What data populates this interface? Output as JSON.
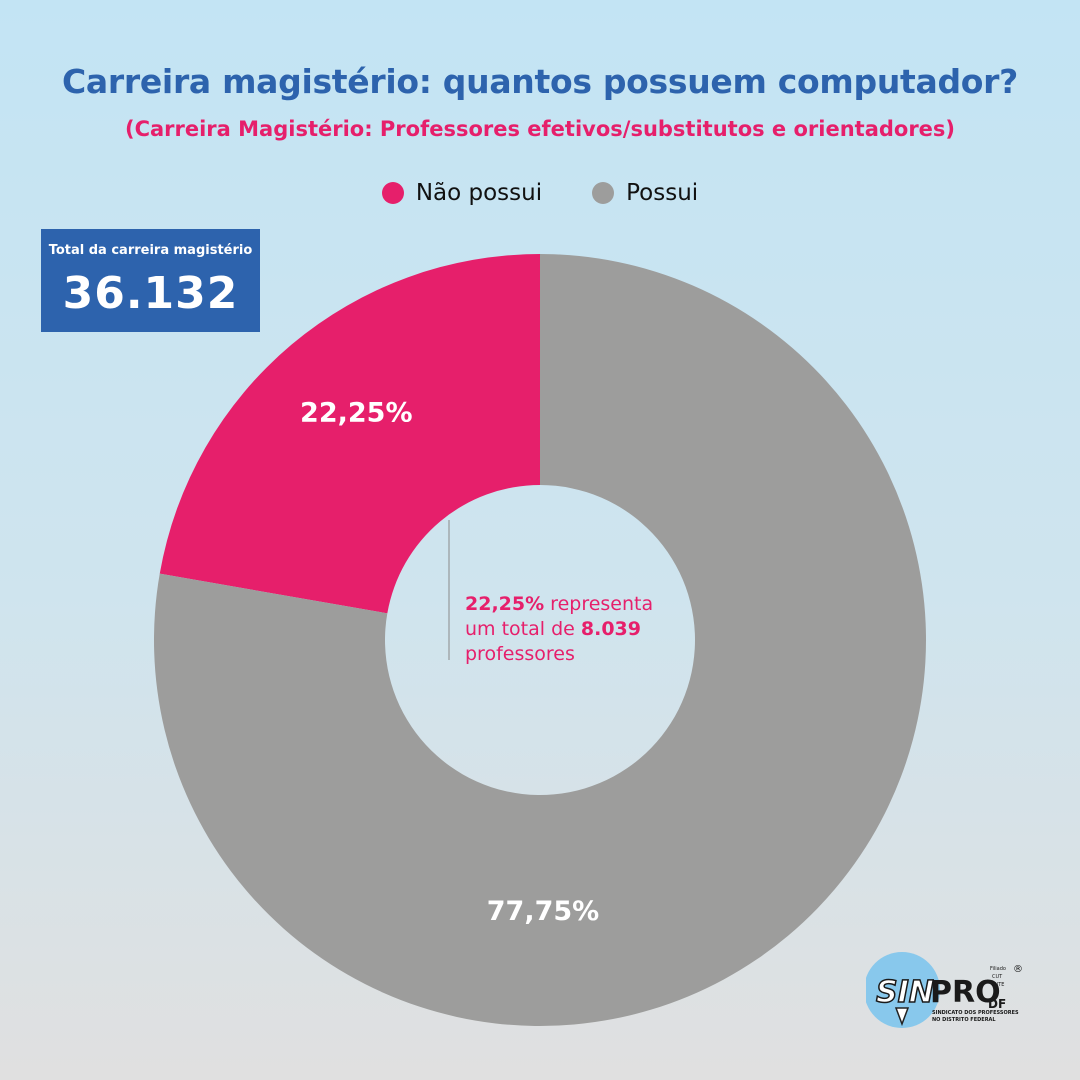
{
  "header": {
    "title": "Carreira magistério: quantos possuem computador?",
    "subtitle": "(Carreira Magistério: Professores efetivos/substitutos e orientadores)"
  },
  "legend": [
    {
      "label": "Não possui",
      "color": "#e61f6b"
    },
    {
      "label": "Possui",
      "color": "#9d9d9c"
    }
  ],
  "total_box": {
    "label": "Total da carreira magistério",
    "value": "36.132"
  },
  "note": {
    "percent": "22,25%",
    "text1": " representa",
    "text2": "um total de ",
    "count": "8.039",
    "text3": "professores"
  },
  "logo": {
    "text_sin": "SIN",
    "text_pro": "PRO",
    "text_df": "DF",
    "text_filiado": "Filiado",
    "text_cut": "CUT",
    "text_cnte": "CNTE",
    "tagline1": "SINDICATO DOS PROFESSORES",
    "tagline2": "NO DISTRITO FEDERAL",
    "registered": "®"
  },
  "chart_data": {
    "type": "pie",
    "variant": "donut",
    "categories": [
      "Não possui",
      "Possui"
    ],
    "values": [
      22.25,
      77.75
    ],
    "labels": [
      "22,25%",
      "77,75%"
    ],
    "colors": [
      "#e61f6b",
      "#9d9d9c"
    ],
    "legend": "top-center"
  }
}
